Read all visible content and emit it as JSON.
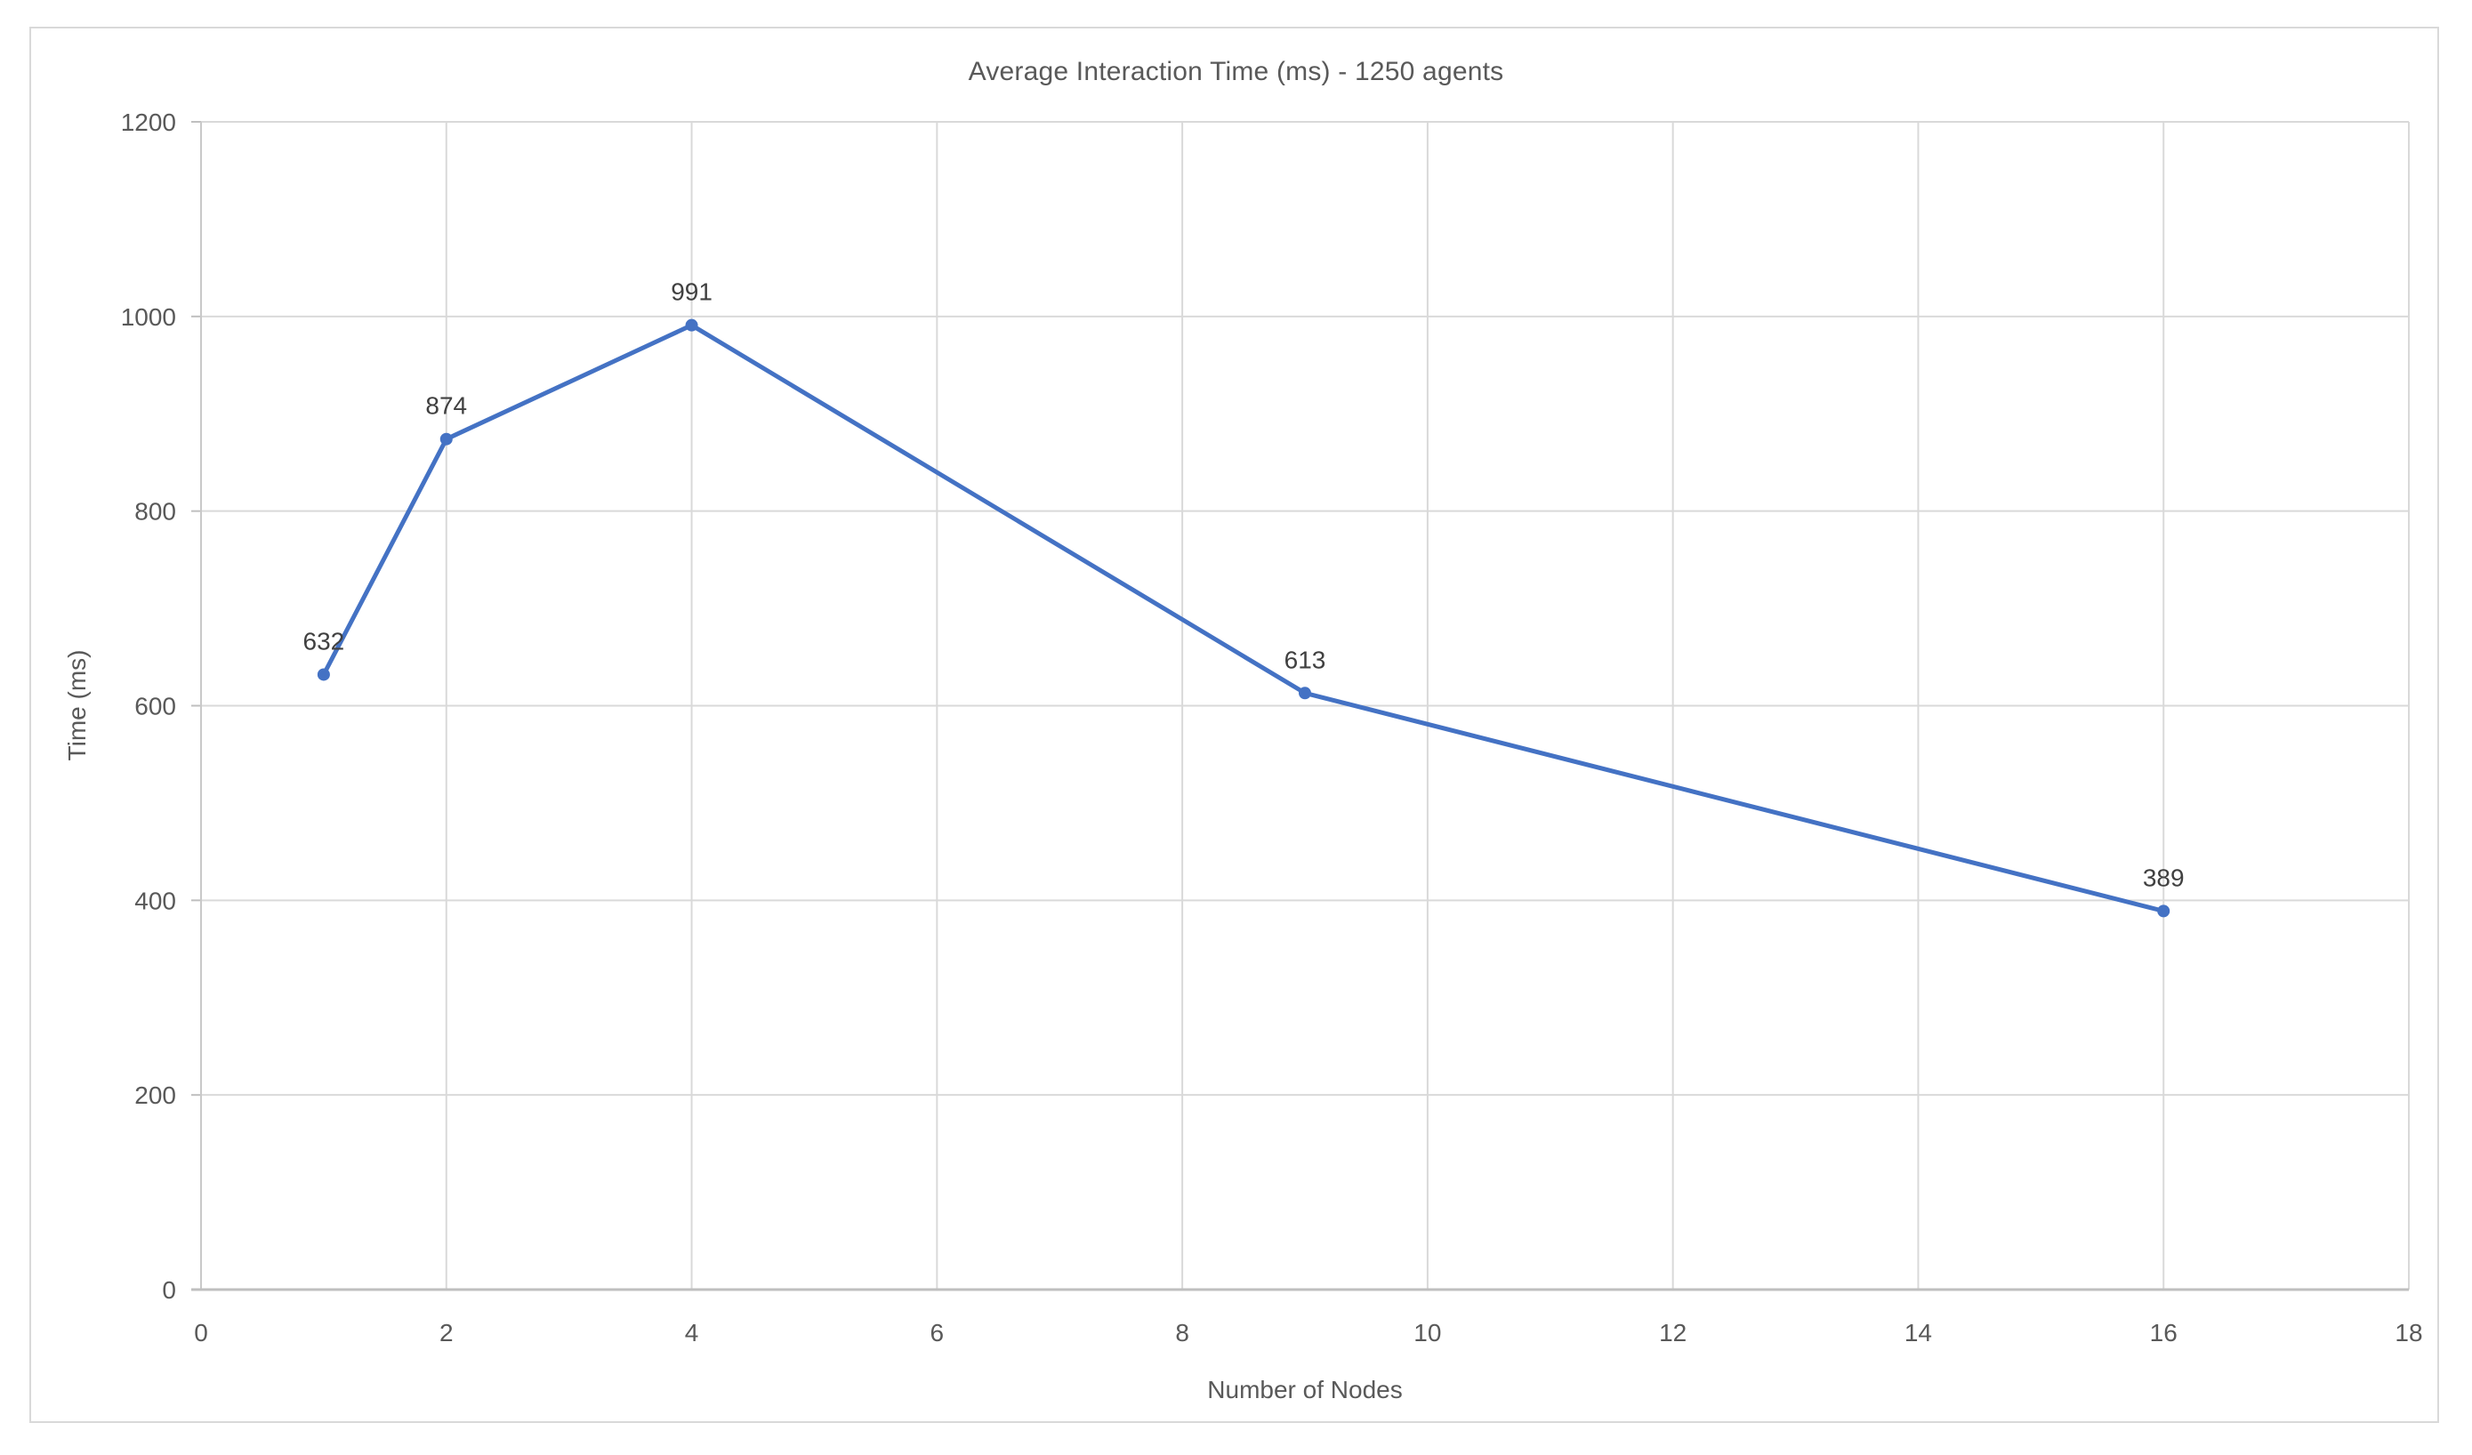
{
  "chart": {
    "title": "Average Interaction Time (ms) - 1250 agents",
    "x_axis_title": "Number of Nodes",
    "y_axis_title": "Time (ms)"
  },
  "chart_data": {
    "type": "line",
    "title": "Average Interaction Time (ms) - 1250 agents",
    "xlabel": "Number of Nodes",
    "ylabel": "Time (ms)",
    "x": [
      1,
      2,
      4,
      9,
      16
    ],
    "values": [
      632,
      874,
      991,
      613,
      389
    ],
    "data_labels": [
      "632",
      "874",
      "991",
      "613",
      "389"
    ],
    "xlim": [
      0,
      18
    ],
    "ylim": [
      0,
      1200
    ],
    "x_ticks": [
      0,
      2,
      4,
      6,
      8,
      10,
      12,
      14,
      16,
      18
    ],
    "y_ticks": [
      0,
      200,
      400,
      600,
      800,
      1000,
      1200
    ],
    "grid": true,
    "legend": false,
    "marker": "circle",
    "colors": {
      "series": "#4472C4",
      "gridline": "#D9D9D9",
      "x_axis_line": "#BFBFBF",
      "y_axis_line": "#C9C9C9",
      "tick_mark": "#BFBFBF",
      "tick_text": "#595959",
      "title_text": "#595959",
      "data_label_text": "#404040",
      "chart_border": "#D9D9D9",
      "background": "#FFFFFF"
    }
  }
}
